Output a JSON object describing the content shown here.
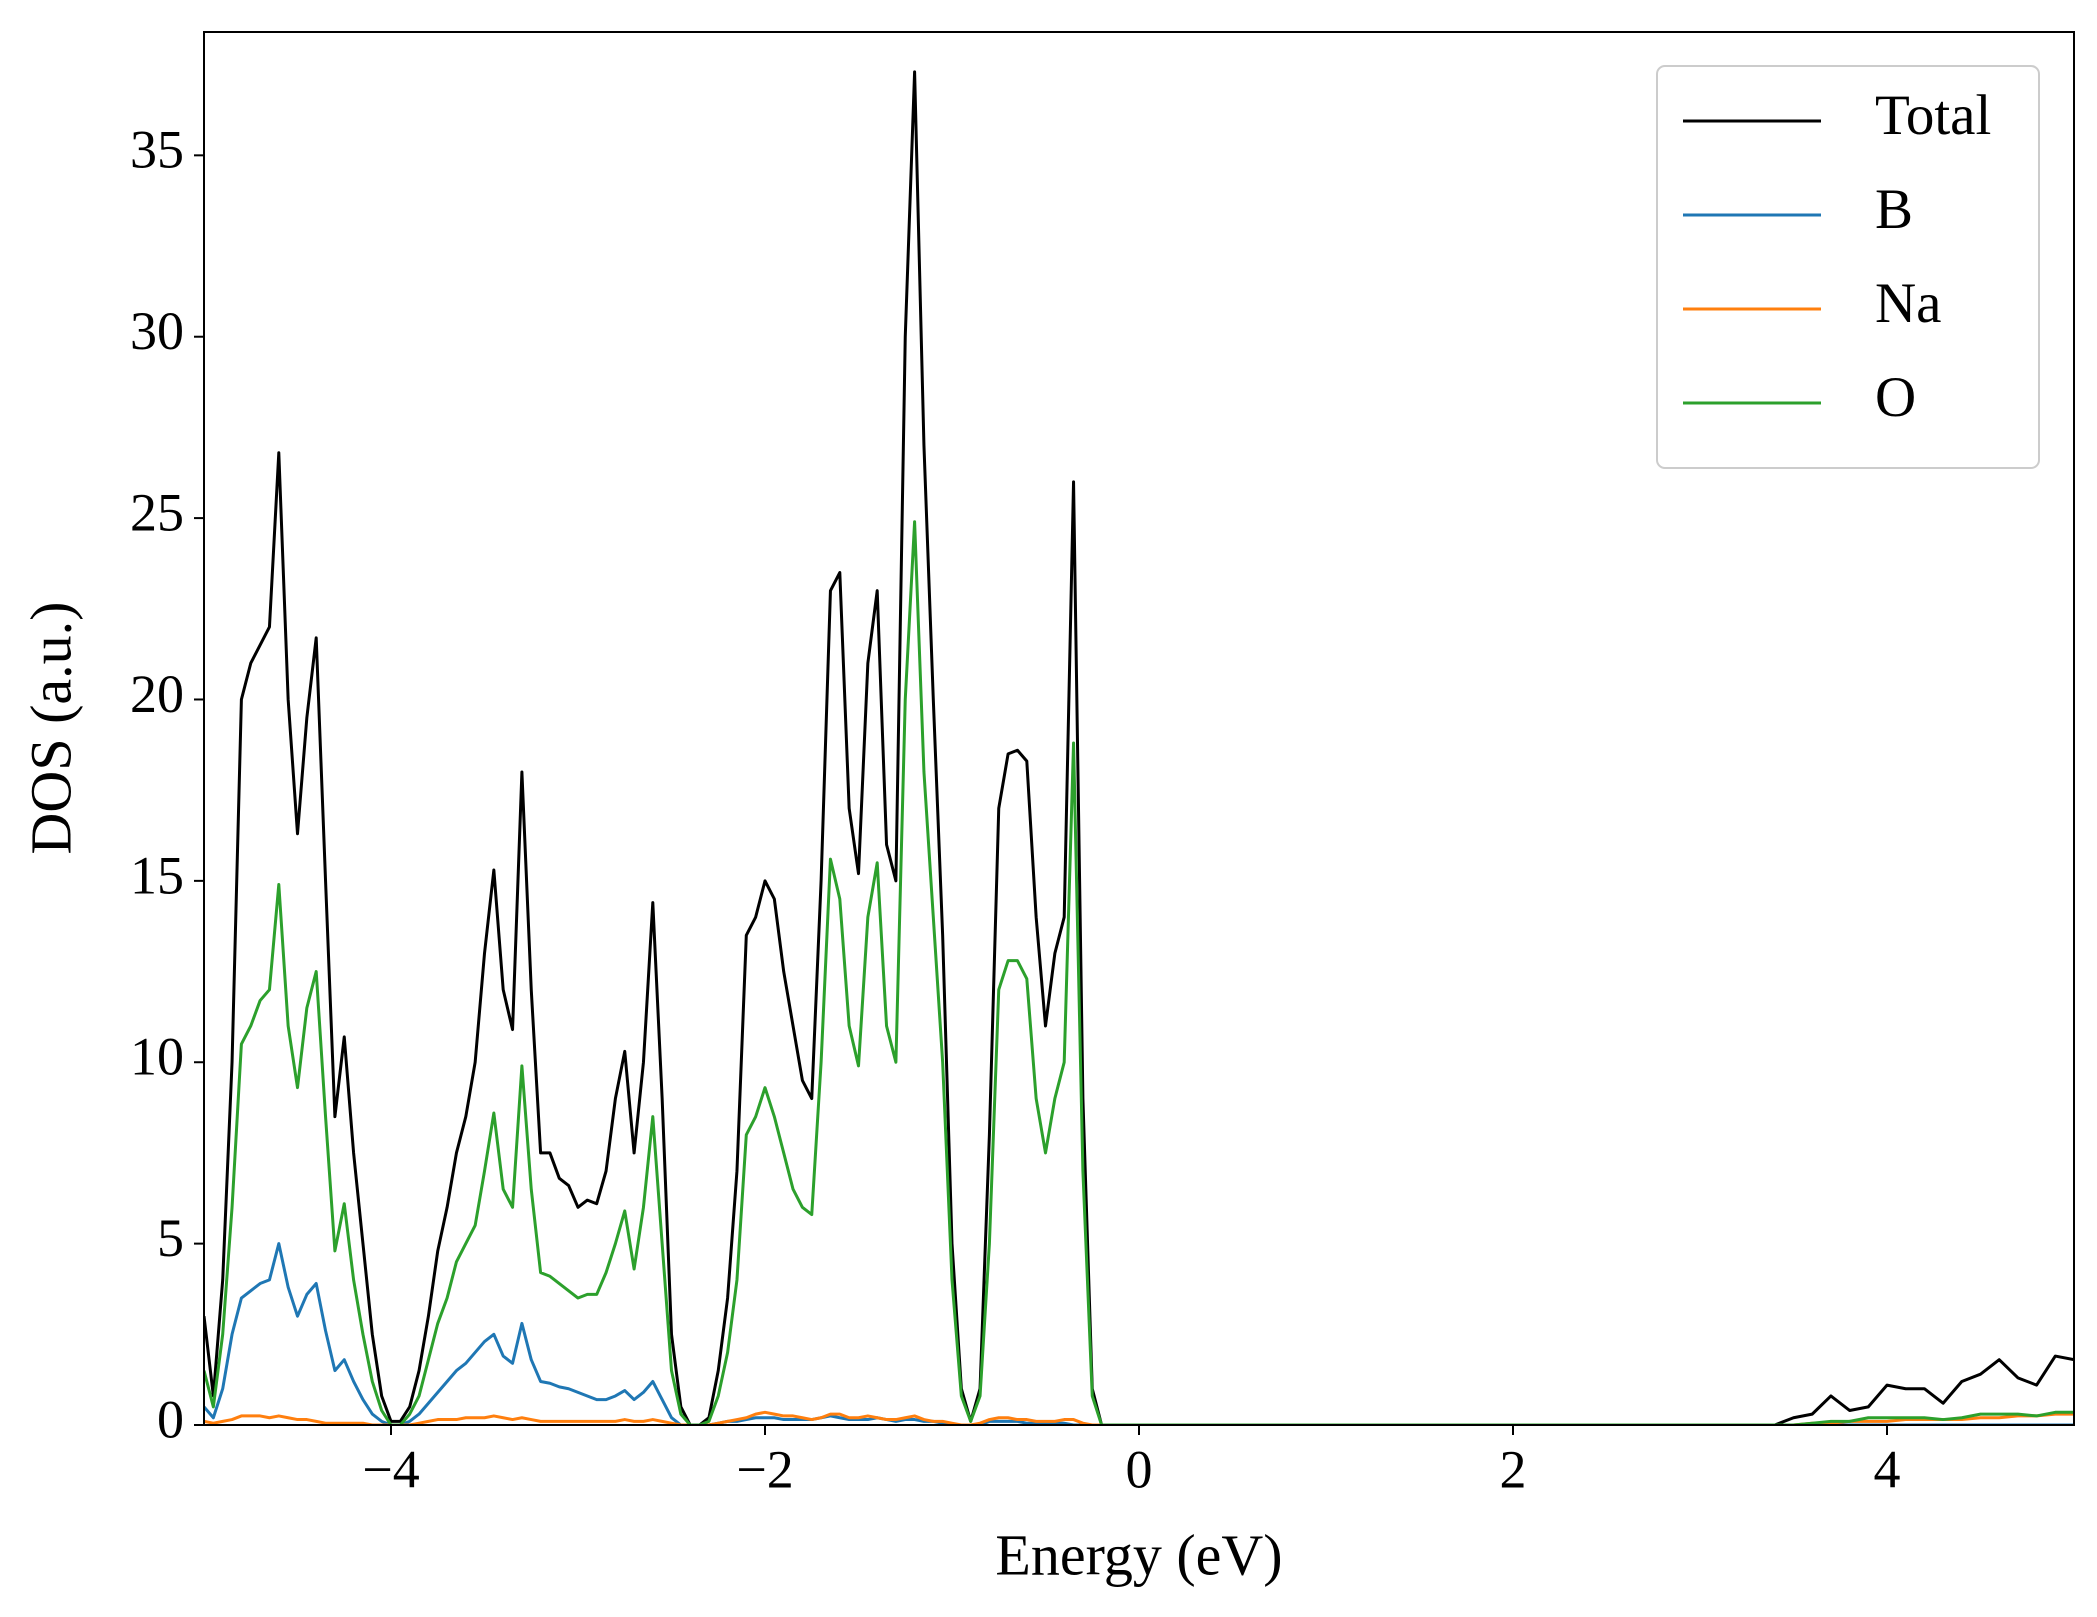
{
  "chart_data": {
    "type": "line",
    "xlabel": "Energy (eV)",
    "ylabel": "DOS (a.u.)",
    "x": [
      -5,
      -4.95,
      -4.9,
      -4.85,
      -4.8,
      -4.75,
      -4.7,
      -4.65,
      -4.6,
      -4.55,
      -4.5,
      -4.45,
      -4.4,
      -4.35,
      -4.3,
      -4.25,
      -4.2,
      -4.15,
      -4.1,
      -4.05,
      -4,
      -3.95,
      -3.9,
      -3.85,
      -3.8,
      -3.75,
      -3.7,
      -3.65,
      -3.6,
      -3.55,
      -3.5,
      -3.45,
      -3.4,
      -3.35,
      -3.3,
      -3.25,
      -3.2,
      -3.15,
      -3.1,
      -3.05,
      -3,
      -2.95,
      -2.9,
      -2.85,
      -2.8,
      -2.75,
      -2.7,
      -2.65,
      -2.6,
      -2.55,
      -2.5,
      -2.45,
      -2.4,
      -2.35,
      -2.3,
      -2.25,
      -2.2,
      -2.15,
      -2.1,
      -2.05,
      -2,
      -1.95,
      -1.9,
      -1.85,
      -1.8,
      -1.75,
      -1.7,
      -1.65,
      -1.6,
      -1.55,
      -1.5,
      -1.45,
      -1.4,
      -1.35,
      -1.3,
      -1.25,
      -1.2,
      -1.15,
      -1.1,
      -1.05,
      -1,
      -0.95,
      -0.9,
      -0.85,
      -0.8,
      -0.75,
      -0.7,
      -0.65,
      -0.6,
      -0.55,
      -0.5,
      -0.45,
      -0.4,
      -0.35,
      -0.3,
      -0.25,
      -0.2,
      0,
      1,
      2,
      3,
      3.4,
      3.5,
      3.6,
      3.7,
      3.8,
      3.9,
      4,
      4.1,
      4.2,
      4.3,
      4.4,
      4.5,
      4.6,
      4.7,
      4.8,
      4.9,
      5
    ],
    "series": [
      {
        "name": "Total",
        "color": "#000000",
        "values": [
          3,
          0.8,
          4,
          10,
          20,
          21,
          21.5,
          22,
          26.8,
          20,
          16.3,
          19.5,
          21.7,
          15,
          8.5,
          10.7,
          7.5,
          5,
          2.5,
          0.8,
          0.1,
          0.1,
          0.5,
          1.5,
          3,
          4.8,
          6,
          7.5,
          8.5,
          10,
          13,
          15.3,
          12,
          10.9,
          18,
          12,
          7.5,
          7.5,
          6.8,
          6.6,
          6,
          6.2,
          6.1,
          7,
          9,
          10.3,
          7.5,
          10,
          14.4,
          9,
          2.5,
          0.5,
          0,
          0,
          0.2,
          1.5,
          3.5,
          7,
          13.5,
          14,
          15,
          14.5,
          12.5,
          11,
          9.5,
          9,
          15,
          23,
          23.5,
          17,
          15.2,
          21,
          23,
          16,
          15,
          30,
          37.3,
          27,
          20,
          13.5,
          5,
          1,
          0.1,
          1,
          8,
          17,
          18.5,
          18.6,
          18.3,
          14,
          11,
          13,
          14,
          26,
          9,
          1,
          0,
          0,
          0,
          0,
          0,
          0,
          0.2,
          0.3,
          0.8,
          0.4,
          0.5,
          1.1,
          1.0,
          1.0,
          0.6,
          1.2,
          1.4,
          1.8,
          1.3,
          1.1,
          1.9,
          1.8
        ]
      },
      {
        "name": "B",
        "color": "#1f77b4",
        "values": [
          0.5,
          0.2,
          1,
          2.5,
          3.5,
          3.7,
          3.9,
          4,
          5,
          3.8,
          3,
          3.6,
          3.9,
          2.6,
          1.5,
          1.8,
          1.2,
          0.7,
          0.3,
          0.1,
          0,
          0,
          0.1,
          0.3,
          0.6,
          0.9,
          1.2,
          1.5,
          1.7,
          2,
          2.3,
          2.5,
          1.9,
          1.7,
          2.8,
          1.8,
          1.2,
          1.15,
          1.05,
          1,
          0.9,
          0.8,
          0.7,
          0.7,
          0.8,
          0.95,
          0.7,
          0.9,
          1.2,
          0.7,
          0.2,
          0,
          0,
          0,
          0,
          0.05,
          0.1,
          0.1,
          0.15,
          0.2,
          0.2,
          0.2,
          0.15,
          0.15,
          0.15,
          0.15,
          0.2,
          0.25,
          0.2,
          0.15,
          0.15,
          0.15,
          0.2,
          0.15,
          0.1,
          0.15,
          0.15,
          0.1,
          0.1,
          0.05,
          0,
          0,
          0,
          0,
          0.1,
          0.1,
          0.1,
          0.1,
          0.05,
          0.05,
          0.05,
          0.05,
          0.05,
          0,
          0,
          0,
          0,
          0,
          0,
          0,
          0,
          0,
          0,
          0,
          0,
          0,
          0,
          0,
          0,
          0,
          0,
          0,
          0,
          0,
          0,
          0,
          0,
          0
        ]
      },
      {
        "name": "Na",
        "color": "#ff7f0e",
        "values": [
          0.1,
          0.05,
          0.1,
          0.15,
          0.25,
          0.25,
          0.25,
          0.2,
          0.25,
          0.2,
          0.15,
          0.15,
          0.1,
          0.05,
          0.05,
          0.05,
          0.05,
          0.05,
          0,
          0,
          0,
          0,
          0,
          0.05,
          0.1,
          0.15,
          0.15,
          0.15,
          0.2,
          0.2,
          0.2,
          0.25,
          0.2,
          0.15,
          0.2,
          0.15,
          0.1,
          0.1,
          0.1,
          0.1,
          0.1,
          0.1,
          0.1,
          0.1,
          0.1,
          0.15,
          0.1,
          0.1,
          0.15,
          0.1,
          0.05,
          0,
          0,
          0,
          0,
          0.05,
          0.1,
          0.15,
          0.2,
          0.3,
          0.35,
          0.3,
          0.25,
          0.25,
          0.2,
          0.15,
          0.2,
          0.3,
          0.3,
          0.2,
          0.2,
          0.25,
          0.2,
          0.15,
          0.15,
          0.2,
          0.25,
          0.15,
          0.1,
          0.1,
          0.05,
          0,
          0,
          0.05,
          0.15,
          0.2,
          0.2,
          0.15,
          0.15,
          0.1,
          0.1,
          0.1,
          0.15,
          0.15,
          0.05,
          0,
          0,
          0,
          0,
          0,
          0,
          0,
          0,
          0.05,
          0.05,
          0.1,
          0.1,
          0.1,
          0.15,
          0.15,
          0.15,
          0.15,
          0.2,
          0.2,
          0.25,
          0.25,
          0.3,
          0.3
        ]
      },
      {
        "name": "O",
        "color": "#2ca02c",
        "values": [
          1.5,
          0.5,
          2.5,
          6,
          10.5,
          11,
          11.7,
          12,
          14.9,
          11,
          9.3,
          11.5,
          12.5,
          8.5,
          4.8,
          6.1,
          4,
          2.5,
          1.2,
          0.4,
          0,
          0,
          0.3,
          0.8,
          1.8,
          2.8,
          3.5,
          4.5,
          5,
          5.5,
          7,
          8.6,
          6.5,
          6,
          9.9,
          6.5,
          4.2,
          4.1,
          3.9,
          3.7,
          3.5,
          3.6,
          3.6,
          4.2,
          5,
          5.9,
          4.3,
          6,
          8.5,
          5,
          1.5,
          0.3,
          0,
          0,
          0.1,
          0.8,
          2,
          4,
          8,
          8.5,
          9.3,
          8.5,
          7.5,
          6.5,
          6,
          5.8,
          10,
          15.6,
          14.5,
          11,
          9.9,
          14,
          15.5,
          11,
          10,
          20,
          24.9,
          18,
          14,
          10,
          4,
          0.8,
          0.1,
          0.8,
          5,
          12,
          12.8,
          12.8,
          12.3,
          9,
          7.5,
          9,
          10,
          18.8,
          7,
          0.8,
          0,
          0,
          0,
          0,
          0,
          0,
          0,
          0.05,
          0.1,
          0.1,
          0.2,
          0.2,
          0.2,
          0.2,
          0.15,
          0.2,
          0.3,
          0.3,
          0.3,
          0.25,
          0.35,
          0.35
        ]
      }
    ],
    "xlim": [
      -5,
      5
    ],
    "ylim": [
      0,
      38.4
    ],
    "xticks": [
      {
        "value": -4,
        "label": "−4"
      },
      {
        "value": -2,
        "label": "−2"
      },
      0,
      2,
      4
    ],
    "yticks": [
      0,
      5,
      10,
      15,
      20,
      25,
      30,
      35
    ],
    "legend": "upper right",
    "grid": false
  }
}
